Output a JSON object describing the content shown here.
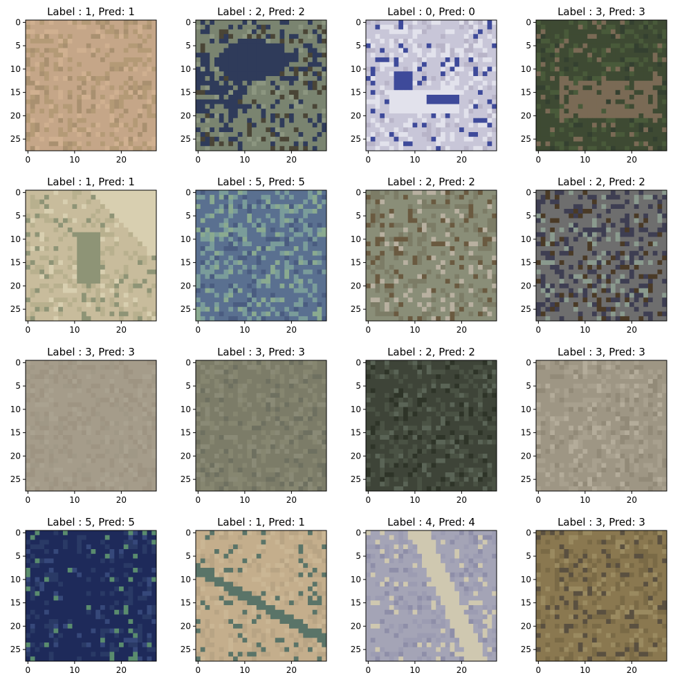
{
  "figure": {
    "panels": [
      {
        "title": "Label : 1, Pred: 1",
        "palette": [
          "#c5a688",
          "#b49a76",
          "#d0b090",
          "#a99070"
        ]
      },
      {
        "title": "Label : 2, Pred: 2",
        "palette": [
          "#7a8470",
          "#2f3b5a",
          "#8c9680",
          "#4a4536"
        ]
      },
      {
        "title": "Label : 0, Pred: 0",
        "palette": [
          "#c8c6d8",
          "#e2e2ec",
          "#3e4a9a",
          "#b8b4c8"
        ]
      },
      {
        "title": "Label : 3, Pred: 3",
        "palette": [
          "#3e4a33",
          "#495a3a",
          "#7a6a55",
          "#344030"
        ]
      },
      {
        "title": "Label : 1, Pred: 1",
        "palette": [
          "#c8bc9c",
          "#b8b08e",
          "#8e9476",
          "#d8cfb0"
        ]
      },
      {
        "title": "Label : 5, Pred: 5",
        "palette": [
          "#5a7090",
          "#7a9c9a",
          "#4a5c80",
          "#8aaa90"
        ]
      },
      {
        "title": "Label : 2, Pred: 2",
        "palette": [
          "#8a8e78",
          "#7c7c66",
          "#6a5a40",
          "#b8b0a0"
        ]
      },
      {
        "title": "Label : 2, Pred: 2",
        "palette": [
          "#6e6e6e",
          "#3e3e52",
          "#8a9a8e",
          "#4a3a26"
        ]
      },
      {
        "title": "Label : 3, Pred: 3",
        "palette": [
          "#a59c8a",
          "#9e9482",
          "#aaa290",
          "#a09886"
        ]
      },
      {
        "title": "Label : 3, Pred: 3",
        "palette": [
          "#7c7c68",
          "#868670",
          "#6e7060",
          "#8a8a76"
        ]
      },
      {
        "title": "Label : 2, Pred: 2",
        "palette": [
          "#3e4438",
          "#4a5244",
          "#2e3428",
          "#5a6456"
        ]
      },
      {
        "title": "Label : 3, Pred: 3",
        "palette": [
          "#9e9684",
          "#a8a08e",
          "#928a78",
          "#b4ac9a"
        ]
      },
      {
        "title": "Label : 5, Pred: 5",
        "palette": [
          "#1e2a5a",
          "#2a3a66",
          "#5a8c6e",
          "#36487a"
        ]
      },
      {
        "title": "Label : 1, Pred: 1",
        "palette": [
          "#c4ae8c",
          "#b8a484",
          "#5a7468",
          "#cab694"
        ]
      },
      {
        "title": "Label : 4, Pred: 4",
        "palette": [
          "#a4a4b6",
          "#9c9cb2",
          "#cfc8b0",
          "#8e8ea8"
        ]
      },
      {
        "title": "Label : 3, Pred: 3",
        "palette": [
          "#8a7850",
          "#7a6a46",
          "#9a8a60",
          "#5a5040"
        ]
      }
    ]
  },
  "chart_data": {
    "type": "heatmap",
    "layout": "4x4 grid of 28x28 image panels",
    "x_ticks": [
      "0",
      "10",
      "20"
    ],
    "y_ticks": [
      "0",
      "5",
      "10",
      "15",
      "20",
      "25"
    ],
    "xlim": [
      -0.5,
      27.5
    ],
    "ylim": [
      27.5,
      -0.5
    ],
    "image_size": [
      28,
      28
    ],
    "labels": [
      1,
      2,
      0,
      3,
      1,
      5,
      2,
      2,
      3,
      3,
      2,
      3,
      5,
      1,
      4,
      3
    ],
    "preds": [
      1,
      2,
      0,
      3,
      1,
      5,
      2,
      2,
      3,
      3,
      2,
      3,
      5,
      1,
      4,
      3
    ]
  }
}
